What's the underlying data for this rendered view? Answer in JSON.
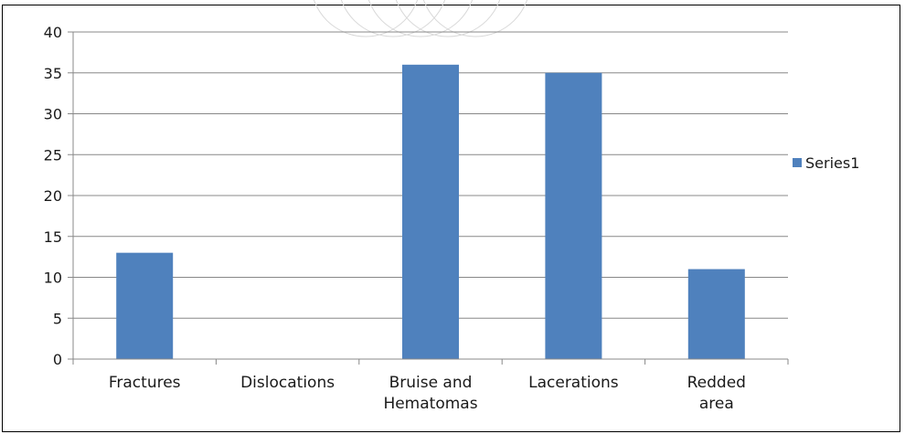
{
  "chart_data": {
    "type": "bar",
    "categories": [
      [
        "Fractures"
      ],
      [
        "Dislocations"
      ],
      [
        "Bruise and",
        "Hematomas"
      ],
      [
        "Lacerations"
      ],
      [
        "Redded",
        "area"
      ]
    ],
    "series": [
      {
        "name": "Series1",
        "values": [
          13,
          0,
          36,
          35,
          11
        ]
      }
    ],
    "y_ticks": [
      "0",
      "5",
      "10",
      "15",
      "20",
      "25",
      "30",
      "35",
      "40"
    ],
    "ylim": [
      0,
      40
    ],
    "grid": true,
    "legend_position": "right",
    "colors": {
      "bar": "#4F81BD",
      "grid": "#888888",
      "axis": "#888888"
    }
  }
}
